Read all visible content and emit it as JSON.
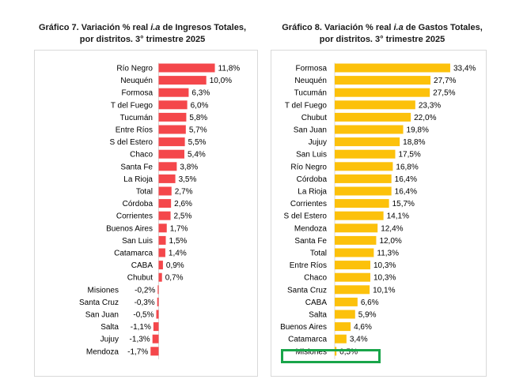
{
  "chart_data": [
    {
      "type": "bar",
      "orientation": "horizontal",
      "title_prefix": "Gráfico 7. Variación % real ",
      "title_italic": "i.a",
      "title_suffix": " de Ingresos Totales,",
      "title_line2": "por distritos. 3° trimestre 2025",
      "color": "#f4474b",
      "categories": [
        "Río Negro",
        "Neuquén",
        "Formosa",
        "T del Fuego",
        "Tucumán",
        "Entre Ríos",
        "S del Estero",
        "Chaco",
        "Santa Fe",
        "La Rioja",
        "Total",
        "Córdoba",
        "Corrientes",
        "Buenos Aires",
        "San Luis",
        "Catamarca",
        "CABA",
        "Chubut",
        "Misiones",
        "Santa Cruz",
        "San Juan",
        "Salta",
        "Jujuy",
        "Mendoza"
      ],
      "values": [
        11.8,
        10.0,
        6.3,
        6.0,
        5.8,
        5.7,
        5.5,
        5.4,
        3.8,
        3.5,
        2.7,
        2.6,
        2.5,
        1.7,
        1.5,
        1.4,
        0.9,
        0.7,
        -0.2,
        -0.3,
        -0.5,
        -1.1,
        -1.3,
        -1.7
      ],
      "value_labels": [
        "11,8%",
        "10,0%",
        "6,3%",
        "6,0%",
        "5,8%",
        "5,7%",
        "5,5%",
        "5,4%",
        "3,8%",
        "3,5%",
        "2,7%",
        "2,6%",
        "2,5%",
        "1,7%",
        "1,5%",
        "1,4%",
        "0,9%",
        "0,7%",
        "-0,2%",
        "-0,3%",
        "-0,5%",
        "-1,1%",
        "-1,3%",
        "-1,7%"
      ],
      "xlim": [
        -1.7,
        11.8
      ]
    },
    {
      "type": "bar",
      "orientation": "horizontal",
      "title_prefix": "Gráfico 8. Variación % real ",
      "title_italic": "i.a",
      "title_suffix": " de Gastos Totales,",
      "title_line2": "por distritos. 3° trimestre 2025",
      "color": "#fcc10b",
      "categories": [
        "Formosa",
        "Neuquén",
        "Tucumán",
        "T del Fuego",
        "Chubut",
        "San Juan",
        "Jujuy",
        "San Luis",
        "Río Negro",
        "Córdoba",
        "La Rioja",
        "Corrientes",
        "S del Estero",
        "Mendoza",
        "Santa Fe",
        "Total",
        "Entre Ríos",
        "Chaco",
        "Santa Cruz",
        "CABA",
        "Salta",
        "Buenos Aires",
        "Catamarca",
        "Misiones"
      ],
      "values": [
        33.4,
        27.7,
        27.5,
        23.3,
        22.0,
        19.8,
        18.8,
        17.5,
        16.8,
        16.4,
        16.4,
        15.7,
        14.1,
        12.4,
        12.0,
        11.3,
        10.3,
        10.3,
        10.1,
        6.6,
        5.9,
        4.6,
        3.4,
        0.5
      ],
      "value_labels": [
        "33,4%",
        "27,7%",
        "27,5%",
        "23,3%",
        "22,0%",
        "19,8%",
        "18,8%",
        "17,5%",
        "16,8%",
        "16,4%",
        "16,4%",
        "15,7%",
        "14,1%",
        "12,4%",
        "12,0%",
        "11,3%",
        "10,3%",
        "10,3%",
        "10,1%",
        "6,6%",
        "5,9%",
        "4,6%",
        "3,4%",
        "0,5%"
      ],
      "highlighted_category": "Misiones",
      "highlight_color": "#19a54a",
      "xlim": [
        0,
        33.4
      ]
    }
  ]
}
